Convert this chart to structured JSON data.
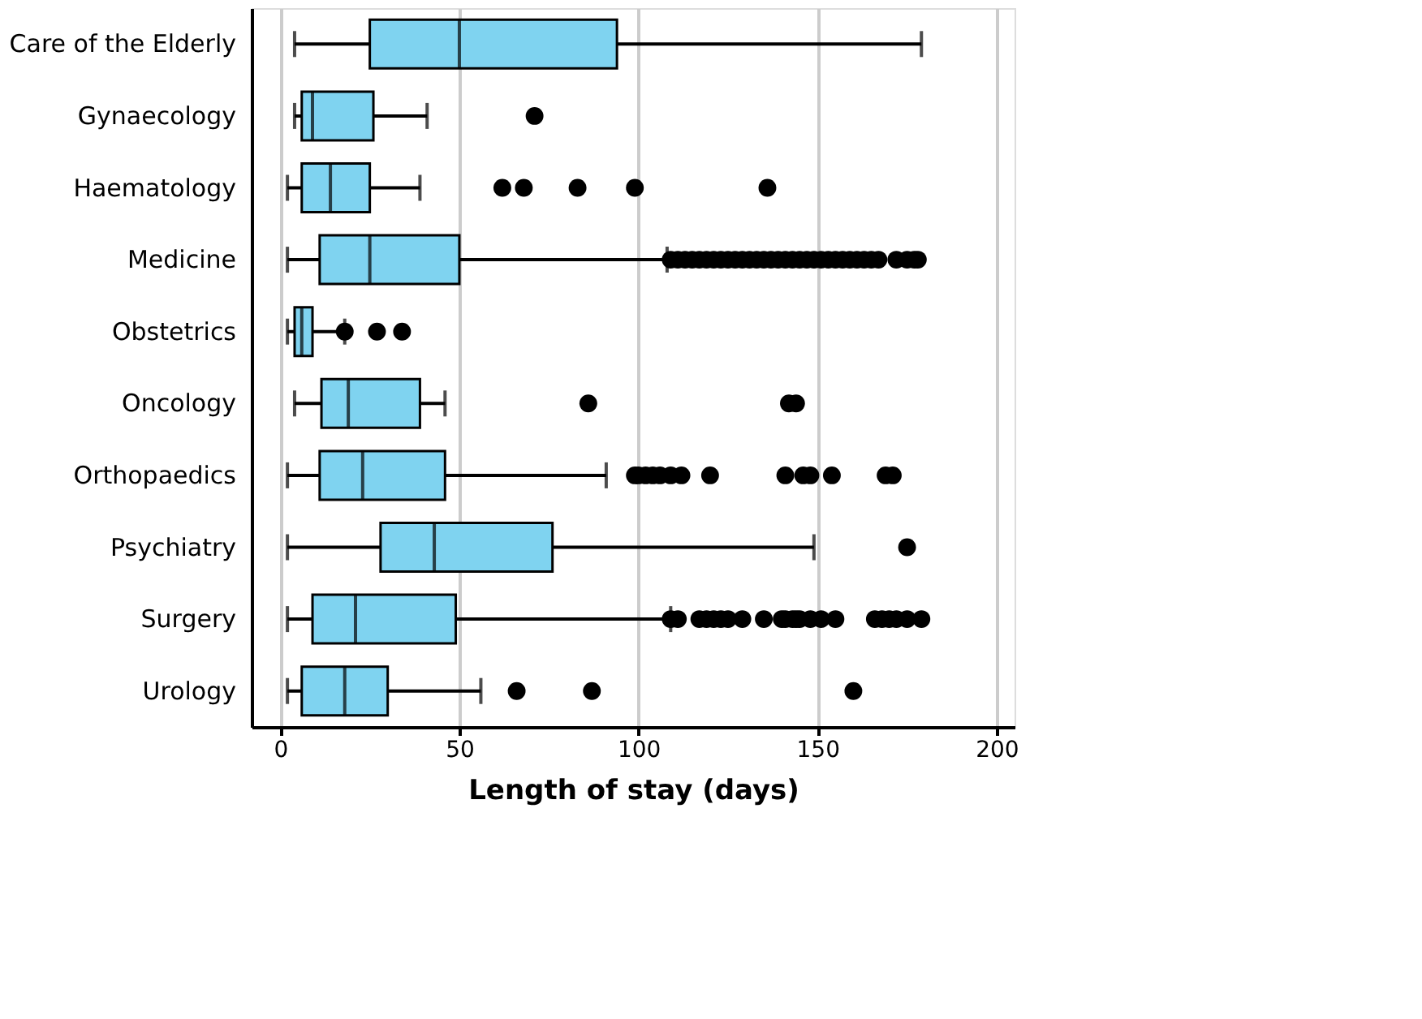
{
  "chart_data": {
    "type": "box",
    "orientation": "horizontal",
    "xlabel": "Length of stay (days)",
    "categories": [
      "Care of the Elderly",
      "Gynaecology",
      "Haematology",
      "Medicine",
      "Obstetrics",
      "Oncology",
      "Orthopaedics",
      "Psychiatry",
      "Surgery",
      "Urology"
    ],
    "color": "#7fd3f0",
    "xlim": [
      -8,
      205
    ],
    "xticks": [
      0,
      50,
      100,
      150,
      200
    ],
    "grid": "x",
    "boxes": [
      {
        "low": 4,
        "q1": 25,
        "median": 50,
        "q3": 94,
        "high": 179
      },
      {
        "low": 4,
        "q1": 6,
        "median": 9,
        "q3": 26,
        "high": 41,
        "outliers": [
          71
        ]
      },
      {
        "low": 2,
        "q1": 6,
        "median": 14,
        "q3": 25,
        "high": 39,
        "outliers": [
          62,
          68,
          83,
          99,
          136
        ]
      },
      {
        "low": 2,
        "q1": 11,
        "median": 25,
        "q3": 50,
        "high": 108,
        "outliers": [
          109,
          111,
          113,
          115,
          117,
          119,
          121,
          123,
          125,
          127,
          129,
          131,
          133,
          135,
          137,
          139,
          141,
          143,
          145,
          147,
          149,
          151,
          153,
          155,
          157,
          159,
          161,
          163,
          165,
          167,
          172,
          175,
          177,
          178
        ]
      },
      {
        "low": 2,
        "q1": 4,
        "median": 6,
        "q3": 9,
        "high": 18,
        "outliers": [
          18,
          27,
          34
        ]
      },
      {
        "low": 4,
        "q1": 11.5,
        "median": 19,
        "q3": 39,
        "high": 46,
        "outliers": [
          86,
          142,
          144
        ]
      },
      {
        "low": 2,
        "q1": 11,
        "median": 23,
        "q3": 46,
        "high": 91,
        "outliers": [
          99,
          100,
          102,
          104,
          106,
          109,
          112,
          120,
          141,
          146,
          148,
          154,
          169,
          171
        ]
      },
      {
        "low": 2,
        "q1": 28,
        "median": 43,
        "q3": 76,
        "high": 149,
        "outliers": [
          175
        ]
      },
      {
        "low": 2,
        "q1": 9,
        "median": 21,
        "q3": 49,
        "high": 109,
        "outliers": [
          109,
          111,
          117,
          119,
          121,
          123,
          125,
          129,
          135,
          140,
          141,
          143,
          144,
          145,
          148,
          151,
          155,
          166,
          168,
          170,
          172,
          175,
          179
        ]
      },
      {
        "low": 2,
        "q1": 6,
        "median": 18,
        "q3": 30,
        "high": 56,
        "outliers": [
          66,
          87,
          160
        ]
      }
    ]
  }
}
